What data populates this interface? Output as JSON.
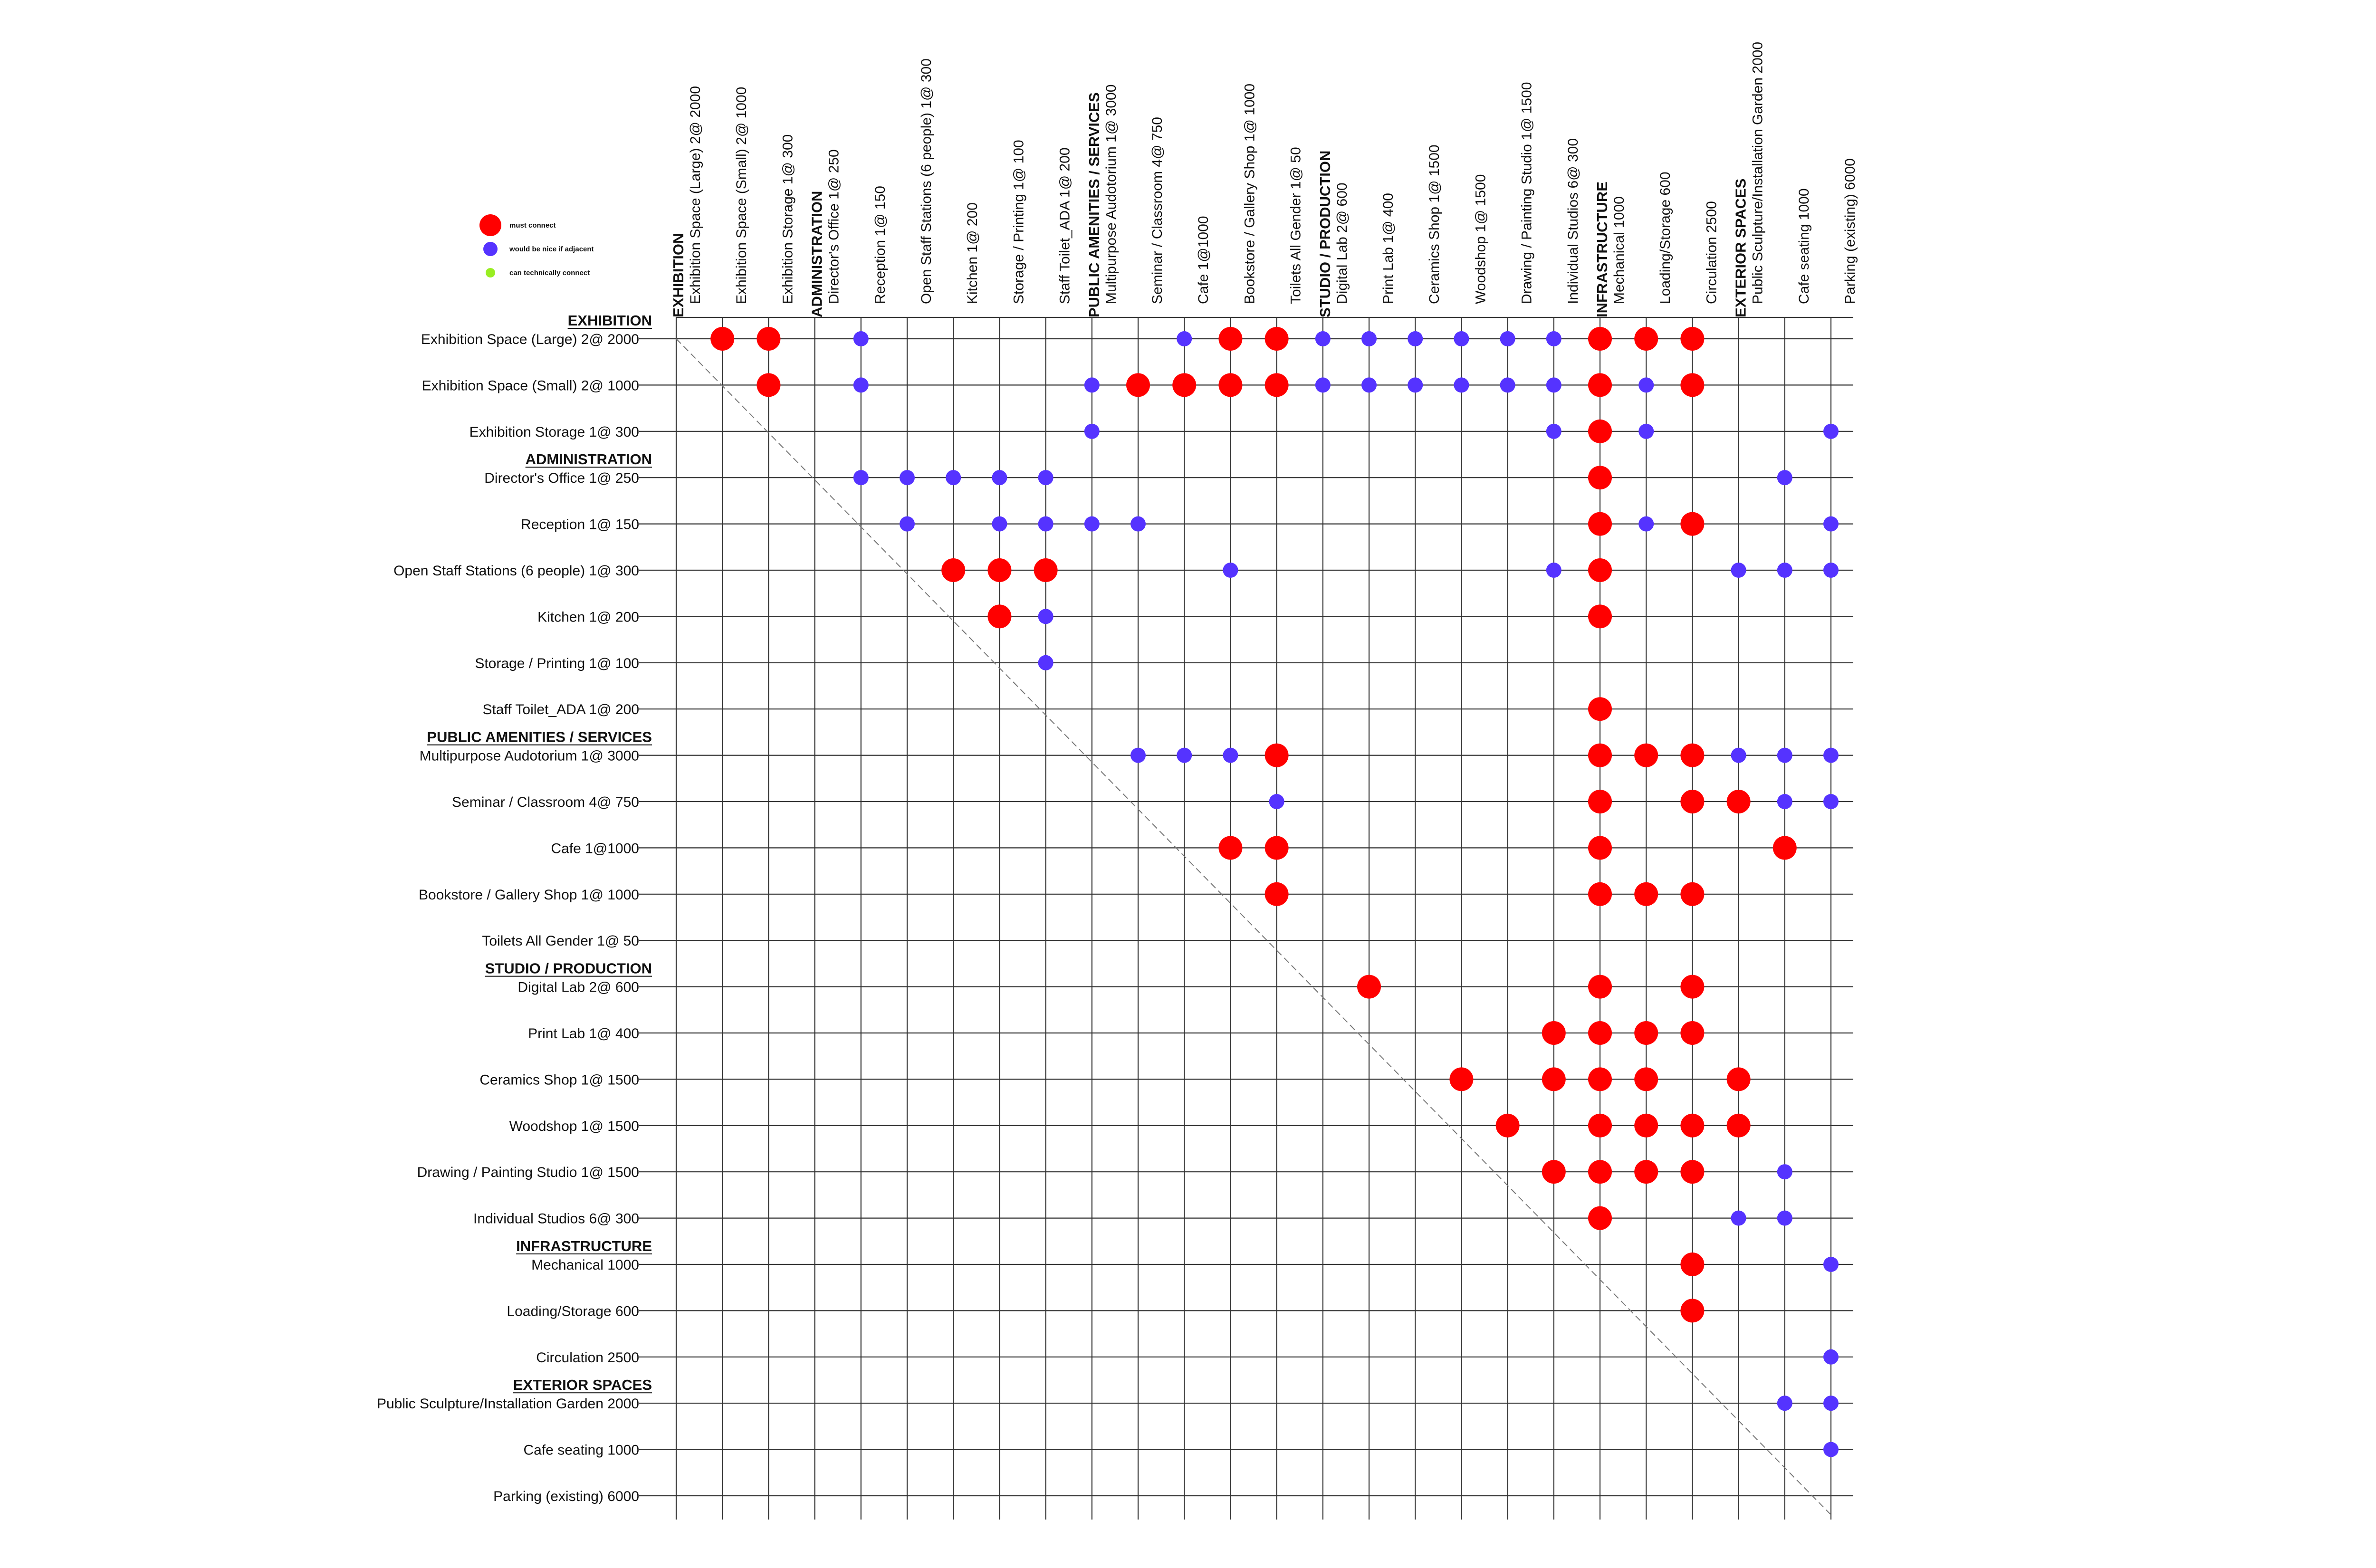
{
  "legend": [
    {
      "label": "must connect",
      "color": "#ff0000",
      "size": "large"
    },
    {
      "label": "would be nice if adjacent",
      "color": "#5533ff",
      "size": "medium"
    },
    {
      "label": "can technically connect",
      "color": "#99ee22",
      "size": "small"
    }
  ],
  "colors": {
    "must": "#ff0000",
    "nice": "#5533ff",
    "can": "#99ee22",
    "grid": "#333333",
    "diagonal": "#777777"
  },
  "spaces": [
    {
      "label": "Exhibition Space (Large) 2@ 2000",
      "category": "EXHIBITION"
    },
    {
      "label": "Exhibition Space (Small) 2@ 1000"
    },
    {
      "label": "Exhibition Storage 1@ 300"
    },
    {
      "label": "Director's Office 1@ 250",
      "category": "ADMINISTRATION"
    },
    {
      "label": "Reception 1@ 150"
    },
    {
      "label": "Open Staff Stations (6 people) 1@ 300"
    },
    {
      "label": "Kitchen 1@ 200"
    },
    {
      "label": "Storage / Printing 1@ 100"
    },
    {
      "label": "Staff Toilet_ADA 1@ 200"
    },
    {
      "label": "Multipurpose Audotorium 1@ 3000",
      "category": "PUBLIC AMENITIES / SERVICES"
    },
    {
      "label": "Seminar / Classroom 4@ 750"
    },
    {
      "label": "Cafe 1@1000"
    },
    {
      "label": "Bookstore / Gallery Shop 1@ 1000"
    },
    {
      "label": "Toilets All Gender 1@ 50"
    },
    {
      "label": "Digital Lab 2@ 600",
      "category": "STUDIO / PRODUCTION"
    },
    {
      "label": "Print Lab 1@ 400"
    },
    {
      "label": "Ceramics Shop 1@ 1500"
    },
    {
      "label": "Woodshop 1@ 1500"
    },
    {
      "label": "Drawing / Painting Studio 1@ 1500"
    },
    {
      "label": "Individual Studios 6@ 300"
    },
    {
      "label": "Mechanical 1000",
      "category": "INFRASTRUCTURE"
    },
    {
      "label": "Loading/Storage 600"
    },
    {
      "label": "Circulation 2500"
    },
    {
      "label": "Public Sculpture/Installation Garden 2000",
      "category": "EXTERIOR SPACES"
    },
    {
      "label": "Cafe seating 1000"
    },
    {
      "label": "Parking (existing) 6000"
    }
  ],
  "connections": [
    {
      "row": 0,
      "col": 1,
      "level": "must"
    },
    {
      "row": 0,
      "col": 2,
      "level": "must"
    },
    {
      "row": 0,
      "col": 4,
      "level": "nice"
    },
    {
      "row": 0,
      "col": 11,
      "level": "nice"
    },
    {
      "row": 0,
      "col": 12,
      "level": "must"
    },
    {
      "row": 0,
      "col": 13,
      "level": "must"
    },
    {
      "row": 0,
      "col": 14,
      "level": "nice"
    },
    {
      "row": 0,
      "col": 15,
      "level": "nice"
    },
    {
      "row": 0,
      "col": 16,
      "level": "nice"
    },
    {
      "row": 0,
      "col": 17,
      "level": "nice"
    },
    {
      "row": 0,
      "col": 18,
      "level": "nice"
    },
    {
      "row": 0,
      "col": 19,
      "level": "nice"
    },
    {
      "row": 0,
      "col": 20,
      "level": "must"
    },
    {
      "row": 0,
      "col": 21,
      "level": "must"
    },
    {
      "row": 0,
      "col": 22,
      "level": "must"
    },
    {
      "row": 1,
      "col": 2,
      "level": "must"
    },
    {
      "row": 1,
      "col": 4,
      "level": "nice"
    },
    {
      "row": 1,
      "col": 9,
      "level": "nice"
    },
    {
      "row": 1,
      "col": 10,
      "level": "must"
    },
    {
      "row": 1,
      "col": 11,
      "level": "must"
    },
    {
      "row": 1,
      "col": 12,
      "level": "must"
    },
    {
      "row": 1,
      "col": 13,
      "level": "must"
    },
    {
      "row": 1,
      "col": 14,
      "level": "nice"
    },
    {
      "row": 1,
      "col": 15,
      "level": "nice"
    },
    {
      "row": 1,
      "col": 16,
      "level": "nice"
    },
    {
      "row": 1,
      "col": 17,
      "level": "nice"
    },
    {
      "row": 1,
      "col": 18,
      "level": "nice"
    },
    {
      "row": 1,
      "col": 19,
      "level": "nice"
    },
    {
      "row": 1,
      "col": 20,
      "level": "must"
    },
    {
      "row": 1,
      "col": 21,
      "level": "nice"
    },
    {
      "row": 1,
      "col": 22,
      "level": "must"
    },
    {
      "row": 2,
      "col": 9,
      "level": "nice"
    },
    {
      "row": 2,
      "col": 19,
      "level": "nice"
    },
    {
      "row": 2,
      "col": 20,
      "level": "must"
    },
    {
      "row": 2,
      "col": 21,
      "level": "nice"
    },
    {
      "row": 2,
      "col": 25,
      "level": "nice"
    },
    {
      "row": 3,
      "col": 4,
      "level": "nice"
    },
    {
      "row": 3,
      "col": 5,
      "level": "nice"
    },
    {
      "row": 3,
      "col": 6,
      "level": "nice"
    },
    {
      "row": 3,
      "col": 7,
      "level": "nice"
    },
    {
      "row": 3,
      "col": 8,
      "level": "nice"
    },
    {
      "row": 3,
      "col": 20,
      "level": "must"
    },
    {
      "row": 3,
      "col": 24,
      "level": "nice"
    },
    {
      "row": 4,
      "col": 5,
      "level": "nice"
    },
    {
      "row": 4,
      "col": 7,
      "level": "nice"
    },
    {
      "row": 4,
      "col": 8,
      "level": "nice"
    },
    {
      "row": 4,
      "col": 9,
      "level": "nice"
    },
    {
      "row": 4,
      "col": 10,
      "level": "nice"
    },
    {
      "row": 4,
      "col": 20,
      "level": "must"
    },
    {
      "row": 4,
      "col": 21,
      "level": "nice"
    },
    {
      "row": 4,
      "col": 22,
      "level": "must"
    },
    {
      "row": 4,
      "col": 25,
      "level": "nice"
    },
    {
      "row": 5,
      "col": 6,
      "level": "must"
    },
    {
      "row": 5,
      "col": 7,
      "level": "must"
    },
    {
      "row": 5,
      "col": 8,
      "level": "must"
    },
    {
      "row": 5,
      "col": 12,
      "level": "nice"
    },
    {
      "row": 5,
      "col": 19,
      "level": "nice"
    },
    {
      "row": 5,
      "col": 20,
      "level": "must"
    },
    {
      "row": 5,
      "col": 23,
      "level": "nice"
    },
    {
      "row": 5,
      "col": 24,
      "level": "nice"
    },
    {
      "row": 5,
      "col": 25,
      "level": "nice"
    },
    {
      "row": 6,
      "col": 7,
      "level": "must"
    },
    {
      "row": 6,
      "col": 8,
      "level": "nice"
    },
    {
      "row": 6,
      "col": 20,
      "level": "must"
    },
    {
      "row": 7,
      "col": 8,
      "level": "nice"
    },
    {
      "row": 8,
      "col": 20,
      "level": "must"
    },
    {
      "row": 9,
      "col": 10,
      "level": "nice"
    },
    {
      "row": 9,
      "col": 11,
      "level": "nice"
    },
    {
      "row": 9,
      "col": 12,
      "level": "nice"
    },
    {
      "row": 9,
      "col": 13,
      "level": "must"
    },
    {
      "row": 9,
      "col": 20,
      "level": "must"
    },
    {
      "row": 9,
      "col": 21,
      "level": "must"
    },
    {
      "row": 9,
      "col": 22,
      "level": "must"
    },
    {
      "row": 9,
      "col": 23,
      "level": "nice"
    },
    {
      "row": 9,
      "col": 24,
      "level": "nice"
    },
    {
      "row": 9,
      "col": 25,
      "level": "nice"
    },
    {
      "row": 10,
      "col": 13,
      "level": "nice"
    },
    {
      "row": 10,
      "col": 20,
      "level": "must"
    },
    {
      "row": 10,
      "col": 22,
      "level": "must"
    },
    {
      "row": 10,
      "col": 23,
      "level": "must"
    },
    {
      "row": 10,
      "col": 24,
      "level": "nice"
    },
    {
      "row": 10,
      "col": 25,
      "level": "nice"
    },
    {
      "row": 11,
      "col": 12,
      "level": "must"
    },
    {
      "row": 11,
      "col": 13,
      "level": "must"
    },
    {
      "row": 11,
      "col": 20,
      "level": "must"
    },
    {
      "row": 11,
      "col": 24,
      "level": "must"
    },
    {
      "row": 12,
      "col": 13,
      "level": "must"
    },
    {
      "row": 12,
      "col": 20,
      "level": "must"
    },
    {
      "row": 12,
      "col": 21,
      "level": "must"
    },
    {
      "row": 12,
      "col": 22,
      "level": "must"
    },
    {
      "row": 14,
      "col": 15,
      "level": "must"
    },
    {
      "row": 14,
      "col": 20,
      "level": "must"
    },
    {
      "row": 14,
      "col": 22,
      "level": "must"
    },
    {
      "row": 15,
      "col": 19,
      "level": "must"
    },
    {
      "row": 15,
      "col": 20,
      "level": "must"
    },
    {
      "row": 15,
      "col": 21,
      "level": "must"
    },
    {
      "row": 15,
      "col": 22,
      "level": "must"
    },
    {
      "row": 16,
      "col": 17,
      "level": "must"
    },
    {
      "row": 16,
      "col": 19,
      "level": "must"
    },
    {
      "row": 16,
      "col": 20,
      "level": "must"
    },
    {
      "row": 16,
      "col": 21,
      "level": "must"
    },
    {
      "row": 16,
      "col": 23,
      "level": "must"
    },
    {
      "row": 17,
      "col": 18,
      "level": "must"
    },
    {
      "row": 17,
      "col": 20,
      "level": "must"
    },
    {
      "row": 17,
      "col": 21,
      "level": "must"
    },
    {
      "row": 17,
      "col": 22,
      "level": "must"
    },
    {
      "row": 17,
      "col": 23,
      "level": "must"
    },
    {
      "row": 18,
      "col": 19,
      "level": "must"
    },
    {
      "row": 18,
      "col": 20,
      "level": "must"
    },
    {
      "row": 18,
      "col": 21,
      "level": "must"
    },
    {
      "row": 18,
      "col": 22,
      "level": "must"
    },
    {
      "row": 18,
      "col": 24,
      "level": "nice"
    },
    {
      "row": 19,
      "col": 20,
      "level": "must"
    },
    {
      "row": 19,
      "col": 23,
      "level": "nice"
    },
    {
      "row": 19,
      "col": 24,
      "level": "nice"
    },
    {
      "row": 20,
      "col": 22,
      "level": "must"
    },
    {
      "row": 20,
      "col": 25,
      "level": "nice"
    },
    {
      "row": 21,
      "col": 22,
      "level": "must"
    },
    {
      "row": 22,
      "col": 25,
      "level": "nice"
    },
    {
      "row": 23,
      "col": 24,
      "level": "nice"
    },
    {
      "row": 23,
      "col": 25,
      "level": "nice"
    },
    {
      "row": 24,
      "col": 25,
      "level": "nice"
    }
  ]
}
